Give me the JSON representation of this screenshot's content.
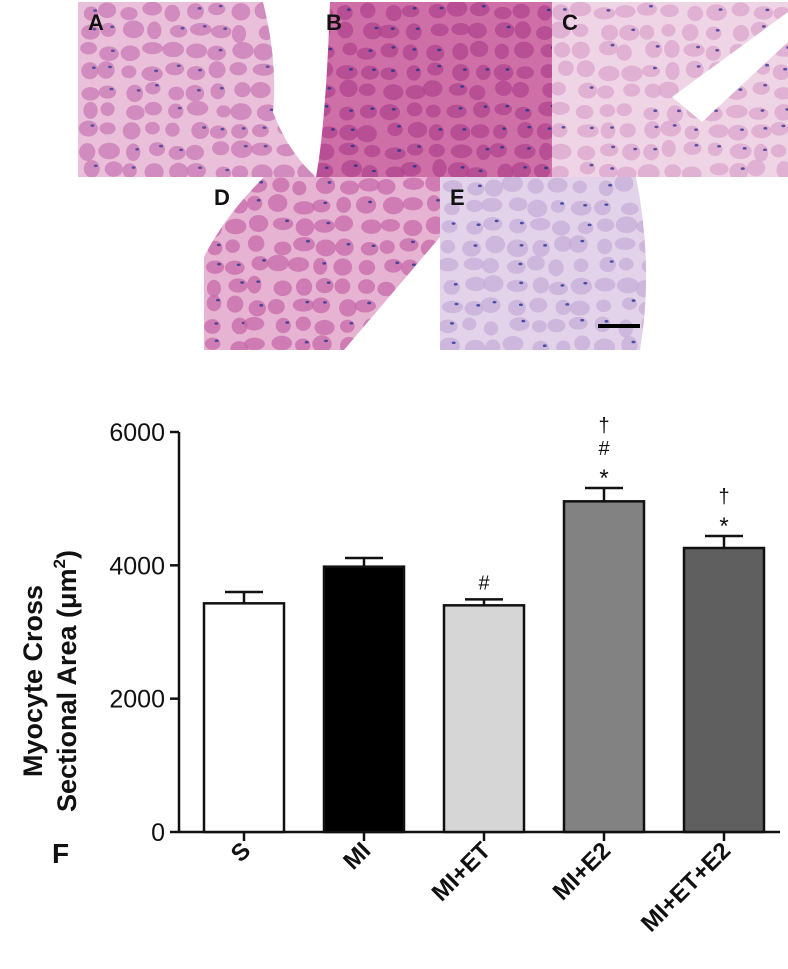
{
  "panels": [
    {
      "label": "A",
      "bg": "#e9bfd9",
      "cell": "#c979b4",
      "nucleus": "#5a4fa0"
    },
    {
      "label": "B",
      "bg": "#cf6fa8",
      "cell": "#b0448d",
      "nucleus": "#3c3a8c"
    },
    {
      "label": "C",
      "bg": "#efd4e6",
      "cell": "#dca6ce",
      "nucleus": "#5a4fa0"
    },
    {
      "label": "D",
      "bg": "#e6b3d2",
      "cell": "#c76aa9",
      "nucleus": "#4a4596"
    },
    {
      "label": "E",
      "bg": "#e3d3ea",
      "cell": "#c7add8",
      "nucleus": "#4a4fa8"
    }
  ],
  "panel_F_label": "F",
  "chart_data": {
    "type": "bar",
    "ylabel_line1": "Myocyte Cross",
    "ylabel_line2": "Sectional Area (μm",
    "ylabel_sup": "2",
    "ylabel_close": ")",
    "ylim": [
      0,
      6000
    ],
    "yticks": [
      "0",
      "2000",
      "4000",
      "6000"
    ],
    "ytick_values": [
      0,
      2000,
      4000,
      6000
    ],
    "categories": [
      "S",
      "MI",
      "MI+ET",
      "MI+E2",
      "MI+ET+E2"
    ],
    "values": [
      3430,
      3980,
      3400,
      4960,
      4260
    ],
    "errors": [
      170,
      130,
      90,
      200,
      180
    ],
    "colors": [
      "#ffffff",
      "#000000",
      "#d6d6d6",
      "#828282",
      "#5f5f5f"
    ],
    "annotations": [
      [],
      [],
      [
        "#"
      ],
      [
        "†",
        "#",
        "*"
      ],
      [
        "†",
        "*"
      ]
    ]
  }
}
